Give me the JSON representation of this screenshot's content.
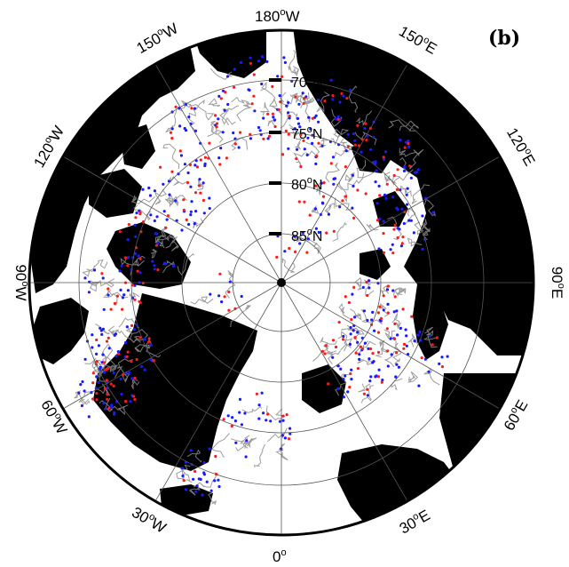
{
  "panel_label": "(b)",
  "projection": "north-polar-stereographic",
  "colors": {
    "land": "#000000",
    "ocean": "#ffffff",
    "tracks": "#8c8c8c",
    "blue_points": "#1a1aff",
    "red_points": "#ff1a1a",
    "graticule": "#555555"
  },
  "longitude_labels": [
    {
      "id": "lon-180w",
      "deg": "180",
      "hem": "W"
    },
    {
      "id": "lon-150w",
      "deg": "150",
      "hem": "W"
    },
    {
      "id": "lon-120w",
      "deg": "120",
      "hem": "W"
    },
    {
      "id": "lon-90w",
      "deg": "90",
      "hem": "W"
    },
    {
      "id": "lon-60w",
      "deg": "60",
      "hem": "W"
    },
    {
      "id": "lon-30w",
      "deg": "30",
      "hem": "W"
    },
    {
      "id": "lon-0",
      "deg": "0",
      "hem": ""
    },
    {
      "id": "lon-30e",
      "deg": "30",
      "hem": "E"
    },
    {
      "id": "lon-60e",
      "deg": "60",
      "hem": "E"
    },
    {
      "id": "lon-90e",
      "deg": "90",
      "hem": "E"
    },
    {
      "id": "lon-120e",
      "deg": "120",
      "hem": "E"
    },
    {
      "id": "lon-150e",
      "deg": "150",
      "hem": "E"
    }
  ],
  "latitude_labels": [
    {
      "deg": "70",
      "hem": "N"
    },
    {
      "deg": "75",
      "hem": "N"
    },
    {
      "deg": "80",
      "hem": "N"
    },
    {
      "deg": "85",
      "hem": "N"
    }
  ]
}
